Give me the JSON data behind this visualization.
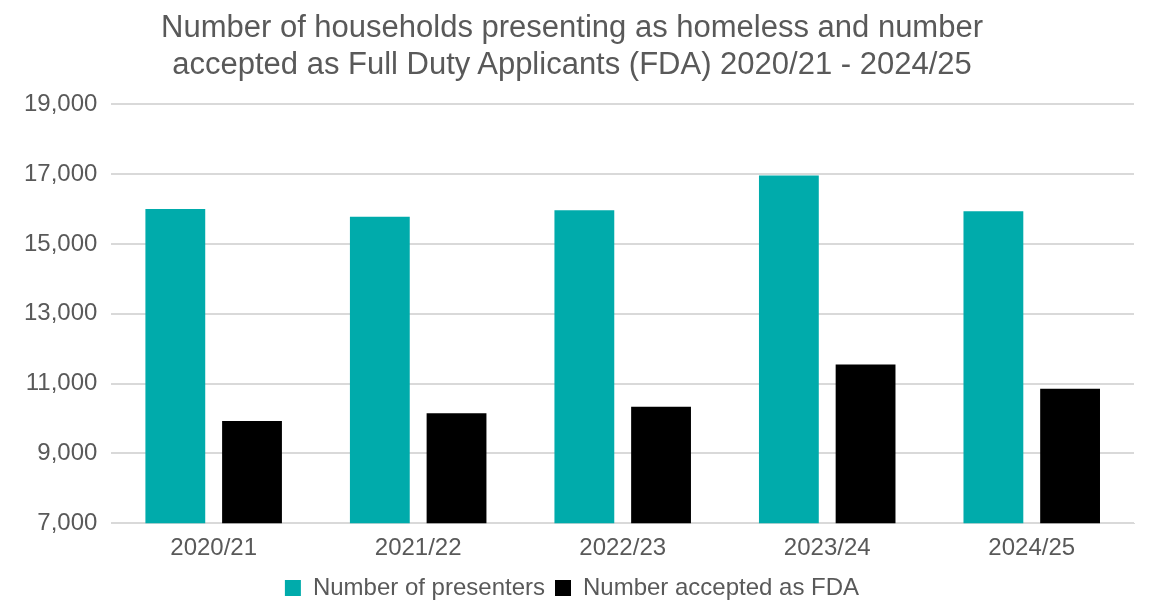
{
  "chart_data": {
    "type": "bar",
    "title": "Number of households presenting as homeless and number accepted as Full Duty Applicants (FDA) 2020/21 - 2024/25",
    "categories": [
      "2020/21",
      "2021/22",
      "2022/23",
      "2023/24",
      "2024/25"
    ],
    "series": [
      {
        "name": "Number of presenters",
        "color": "#00abab",
        "values": [
          16000,
          15780,
          15970,
          16960,
          15940
        ]
      },
      {
        "name": "Number accepted as FDA",
        "color": "#000000",
        "values": [
          9930,
          10150,
          10340,
          11550,
          10850
        ]
      }
    ],
    "ylim": [
      7000,
      19000
    ],
    "yticks": [
      {
        "value": 7000,
        "label": "7,000"
      },
      {
        "value": 9000,
        "label": "9,000"
      },
      {
        "value": 11000,
        "label": "11,000"
      },
      {
        "value": 13000,
        "label": "13,000"
      },
      {
        "value": 15000,
        "label": "15,000"
      },
      {
        "value": 17000,
        "label": "17,000"
      },
      {
        "value": 19000,
        "label": "19,000"
      }
    ],
    "grid": "y",
    "legend": "bottom"
  }
}
